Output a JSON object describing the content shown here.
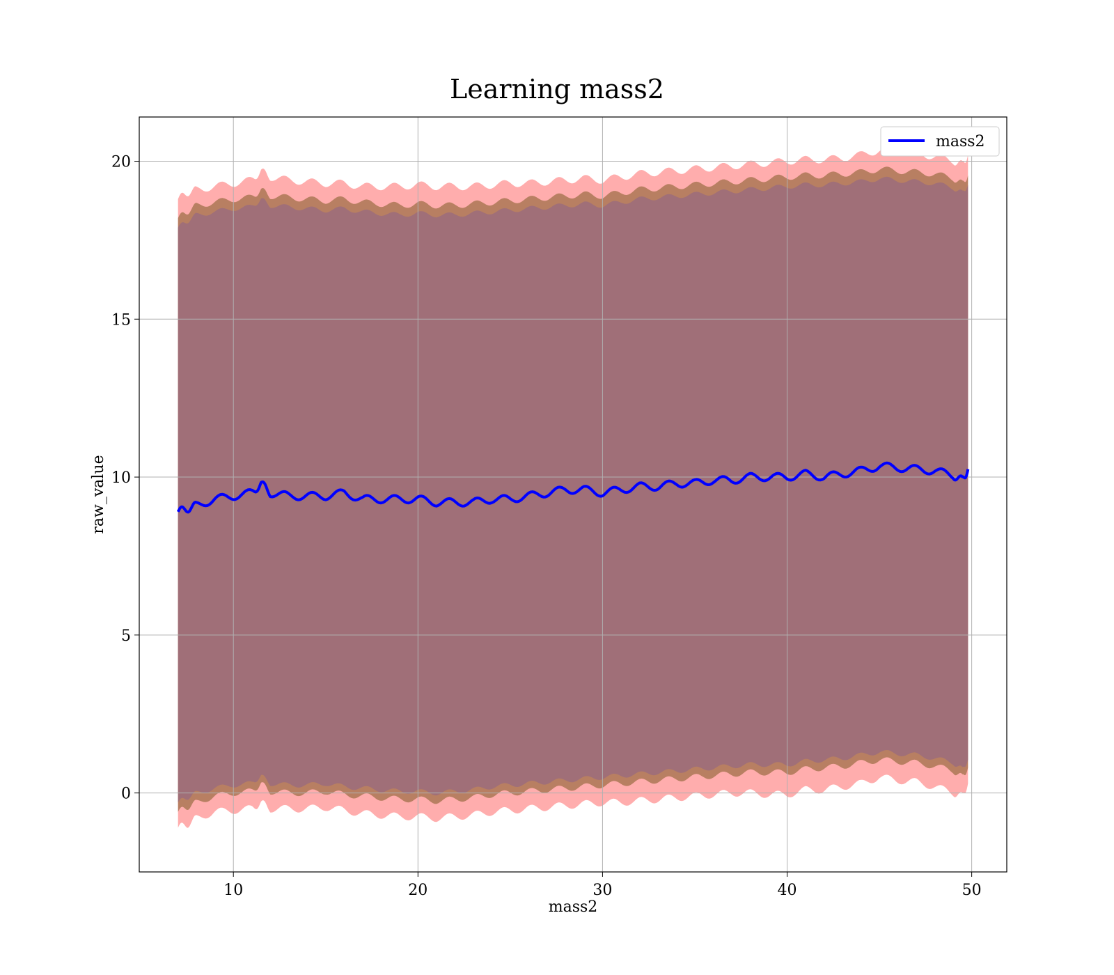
{
  "chart_data": {
    "type": "line",
    "title": "Learning mass2",
    "xlabel": "mass2",
    "ylabel": "raw_value",
    "xlim": [
      4.9,
      51.9
    ],
    "ylim": [
      -2.5,
      21.4
    ],
    "xticks": [
      10,
      20,
      30,
      40,
      50
    ],
    "yticks": [
      0,
      5,
      10,
      15,
      20
    ],
    "grid": true,
    "legend": {
      "position": "top-right",
      "entries": [
        "mass2"
      ]
    },
    "colors": {
      "line": "#0000ff",
      "band_outer": "#ff8a8a",
      "band_middle": "#a0704a",
      "band_inner": "#7a4f6a",
      "overlap": "#a06f78"
    },
    "series": [
      {
        "name": "mass2",
        "x": [
          7.0,
          7.5,
          8.0,
          9.0,
          10.0,
          11.0,
          11.5,
          12.0,
          13.0,
          14.0,
          15.0,
          16.0,
          17.0,
          18.0,
          19.0,
          20.0,
          21.0,
          22.0,
          23.0,
          24.0,
          25.0,
          26.0,
          27.0,
          28.0,
          29.0,
          30.0,
          31.0,
          32.0,
          33.0,
          34.0,
          35.0,
          36.0,
          37.0,
          38.0,
          39.0,
          40.0,
          41.0,
          42.0,
          43.0,
          44.0,
          45.0,
          46.0,
          47.0,
          48.0,
          49.0,
          49.5,
          49.8
        ],
        "y": [
          8.9,
          9.0,
          9.1,
          9.3,
          9.4,
          9.5,
          9.8,
          9.5,
          9.4,
          9.4,
          9.4,
          9.5,
          9.3,
          9.3,
          9.3,
          9.3,
          9.2,
          9.2,
          9.2,
          9.3,
          9.3,
          9.4,
          9.5,
          9.6,
          9.6,
          9.5,
          9.6,
          9.7,
          9.7,
          9.8,
          9.8,
          9.9,
          9.9,
          10.0,
          10.0,
          10.0,
          10.1,
          10.0,
          10.1,
          10.2,
          10.35,
          10.3,
          10.25,
          10.2,
          10.05,
          9.9,
          10.25
        ]
      }
    ],
    "bands": [
      {
        "lower": [
          -1.1,
          -1.0,
          -0.8,
          -0.6,
          -0.55,
          -0.5,
          -0.3,
          -0.5,
          -0.5,
          -0.5,
          -0.45,
          -0.55,
          -0.65,
          -0.7,
          -0.75,
          -0.75,
          -0.8,
          -0.75,
          -0.7,
          -0.6,
          -0.55,
          -0.5,
          -0.45,
          -0.4,
          -0.35,
          -0.3,
          -0.3,
          -0.25,
          -0.2,
          -0.15,
          -0.1,
          -0.05,
          0.0,
          0.0,
          -0.05,
          -0.05,
          0.1,
          0.1,
          0.2,
          0.3,
          0.5,
          0.4,
          0.35,
          0.2,
          0.0,
          -0.1,
          0.3
        ],
        "upper": [
          18.8,
          19.0,
          19.1,
          19.2,
          19.3,
          19.4,
          19.7,
          19.5,
          19.4,
          19.35,
          19.3,
          19.3,
          19.2,
          19.2,
          19.2,
          19.25,
          19.2,
          19.2,
          19.2,
          19.25,
          19.3,
          19.3,
          19.35,
          19.4,
          19.45,
          19.4,
          19.5,
          19.6,
          19.65,
          19.7,
          19.75,
          19.8,
          19.85,
          19.9,
          19.95,
          20.0,
          20.05,
          20.05,
          20.1,
          20.2,
          20.35,
          20.3,
          20.25,
          20.15,
          20.0,
          19.9,
          20.2
        ]
      },
      {
        "lower": [
          -0.6,
          -0.45,
          -0.3,
          -0.1,
          0.0,
          0.05,
          0.3,
          0.05,
          0.0,
          0.0,
          0.05,
          -0.05,
          -0.1,
          -0.15,
          -0.2,
          -0.2,
          -0.25,
          -0.2,
          -0.15,
          -0.05,
          0.0,
          0.05,
          0.1,
          0.15,
          0.2,
          0.25,
          0.3,
          0.35,
          0.4,
          0.45,
          0.5,
          0.55,
          0.6,
          0.65,
          0.65,
          0.65,
          0.75,
          0.8,
          0.85,
          0.95,
          1.05,
          1.0,
          0.95,
          0.85,
          0.7,
          0.5,
          0.8
        ]
      },
      {
        "upper": [
          18.2,
          18.4,
          18.6,
          18.7,
          18.8,
          18.85,
          19.1,
          18.9,
          18.85,
          18.8,
          18.75,
          18.8,
          18.7,
          18.65,
          18.6,
          18.65,
          18.6,
          18.6,
          18.65,
          18.7,
          18.75,
          18.8,
          18.85,
          18.9,
          18.95,
          18.9,
          19.0,
          19.1,
          19.15,
          19.2,
          19.25,
          19.3,
          19.35,
          19.4,
          19.45,
          19.5,
          19.55,
          19.55,
          19.6,
          19.65,
          19.75,
          19.7,
          19.65,
          19.6,
          19.45,
          19.3,
          19.55
        ]
      },
      {
        "lower": [
          -0.3,
          -0.15,
          0.0,
          0.15,
          0.25,
          0.3,
          0.55,
          0.3,
          0.25,
          0.25,
          0.3,
          0.2,
          0.15,
          0.1,
          0.05,
          0.05,
          0.0,
          0.05,
          0.1,
          0.2,
          0.25,
          0.3,
          0.35,
          0.4,
          0.45,
          0.5,
          0.55,
          0.6,
          0.65,
          0.7,
          0.75,
          0.8,
          0.85,
          0.9,
          0.9,
          0.9,
          1.0,
          1.05,
          1.1,
          1.2,
          1.3,
          1.25,
          1.2,
          1.1,
          0.95,
          0.75,
          1.05
        ],
        "upper": [
          17.9,
          18.1,
          18.3,
          18.4,
          18.5,
          18.55,
          18.8,
          18.6,
          18.55,
          18.5,
          18.45,
          18.5,
          18.4,
          18.35,
          18.3,
          18.35,
          18.3,
          18.3,
          18.35,
          18.4,
          18.45,
          18.5,
          18.55,
          18.6,
          18.65,
          18.6,
          18.7,
          18.8,
          18.85,
          18.9,
          18.95,
          19.0,
          19.05,
          19.1,
          19.15,
          19.2,
          19.25,
          19.25,
          19.3,
          19.35,
          19.45,
          19.4,
          19.35,
          19.3,
          19.15,
          19.0,
          19.25
        ]
      }
    ]
  }
}
